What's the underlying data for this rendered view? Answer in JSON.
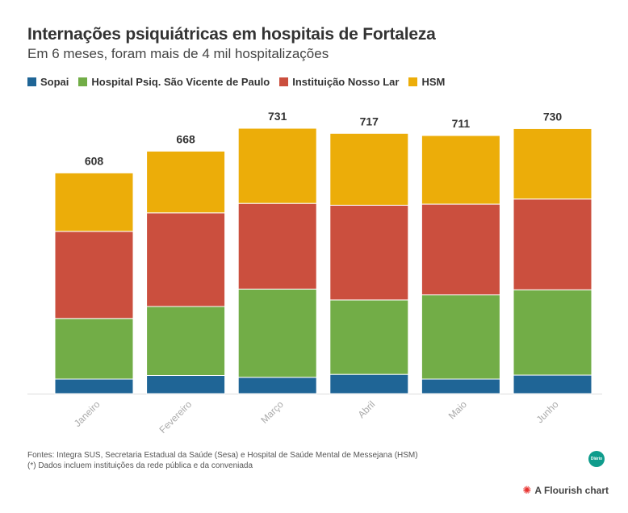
{
  "header": {
    "title": "Internações psiquiátricas em hospitais de Fortaleza",
    "subtitle": "Em 6 meses, foram mais de 4 mil hospitalizações"
  },
  "legend": [
    {
      "label": "Sopai",
      "color": "#1f6596"
    },
    {
      "label": "Hospital Psiq. São Vicente de Paulo",
      "color": "#72ad47"
    },
    {
      "label": "Instituição Nosso Lar",
      "color": "#cb4f3e"
    },
    {
      "label": "HSM",
      "color": "#ecad09"
    }
  ],
  "chart_data": {
    "type": "bar",
    "stacked": true,
    "categories": [
      "Janeiro",
      "Fevereiro",
      "Março",
      "Abril",
      "Maio",
      "Junho"
    ],
    "series": [
      {
        "name": "Sopai",
        "color": "#1f6596",
        "values": [
          40,
          50,
          45,
          53,
          40,
          51
        ]
      },
      {
        "name": "Hospital Psiq. São Vicente de Paulo",
        "color": "#72ad47",
        "values": [
          167,
          190,
          243,
          205,
          232,
          235
        ]
      },
      {
        "name": "Instituição Nosso Lar",
        "color": "#cb4f3e",
        "values": [
          240,
          258,
          236,
          261,
          250,
          250
        ]
      },
      {
        "name": "HSM",
        "color": "#ecad09",
        "values": [
          161,
          170,
          207,
          198,
          189,
          194
        ]
      }
    ],
    "totals": [
      608,
      668,
      731,
      717,
      711,
      730
    ],
    "ylim": [
      0,
      731
    ],
    "grid": false,
    "legend_position": "top-left"
  },
  "footer": {
    "source": "Fontes: Integra SUS, Secretaria Estadual da Saúde (Sesa) e Hospital de Saúde Mental de Messejana (HSM)",
    "note": "(*) Dados incluem instituições da rede pública e da conveniada",
    "logo_text": "Diário",
    "credit": "A Flourish chart"
  }
}
